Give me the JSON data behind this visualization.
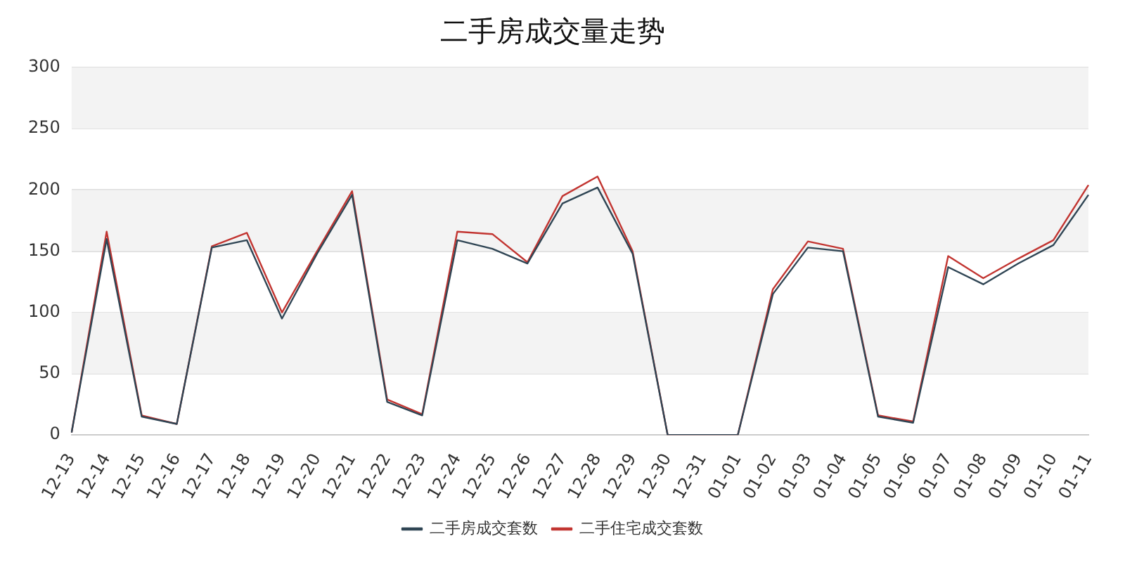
{
  "chart_data": {
    "type": "line",
    "title": "二手房成交量走势",
    "categories": [
      "12-13",
      "12-14",
      "12-15",
      "12-16",
      "12-17",
      "12-18",
      "12-19",
      "12-20",
      "12-21",
      "12-22",
      "12-23",
      "12-24",
      "12-25",
      "12-26",
      "12-27",
      "12-28",
      "12-29",
      "12-30",
      "12-31",
      "01-01",
      "01-02",
      "01-03",
      "01-04",
      "01-05",
      "01-06",
      "01-07",
      "01-08",
      "01-09",
      "01-10",
      "01-11"
    ],
    "series": [
      {
        "name": "二手房成交套数",
        "color": "#2f4554",
        "values": [
          2,
          160,
          15,
          9,
          153,
          159,
          95,
          148,
          196,
          27,
          16,
          159,
          152,
          140,
          189,
          202,
          148,
          0,
          0,
          0,
          115,
          153,
          150,
          15,
          10,
          137,
          123,
          140,
          155,
          196
        ]
      },
      {
        "name": "二手住宅成交套数",
        "color": "#c23531",
        "values": [
          2,
          166,
          16,
          9,
          154,
          165,
          100,
          150,
          199,
          29,
          17,
          166,
          164,
          141,
          195,
          211,
          150,
          0,
          0,
          0,
          119,
          158,
          152,
          16,
          11,
          146,
          128,
          144,
          159,
          204
        ]
      }
    ],
    "ylim": [
      0,
      300
    ],
    "yticks": [
      0,
      50,
      100,
      150,
      200,
      250,
      300
    ],
    "bands": [
      {
        "axis": "y",
        "from": 50,
        "to": 100,
        "color": "#f3f3f3"
      },
      {
        "axis": "y",
        "from": 150,
        "to": 200,
        "color": "#f3f3f3"
      },
      {
        "axis": "y",
        "from": 250,
        "to": 300,
        "color": "#f3f3f3"
      }
    ],
    "grid": "y",
    "legend": "bottom",
    "marker": "none",
    "line_style": "solid"
  }
}
